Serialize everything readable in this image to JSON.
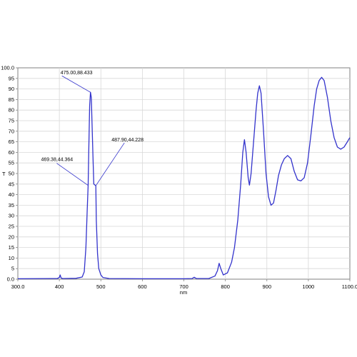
{
  "chart_data": {
    "type": "line",
    "xlabel": "nm",
    "ylabel": "T",
    "xlim": [
      300,
      1100
    ],
    "ylim": [
      0,
      100
    ],
    "x_ticks": [
      300,
      400,
      500,
      600,
      700,
      800,
      900,
      1000,
      1100
    ],
    "x_tick_labels": [
      "300.0",
      "400",
      "500",
      "600",
      "700",
      "800",
      "900",
      "1000",
      "1100.0"
    ],
    "y_ticks": [
      0,
      5,
      10,
      15,
      20,
      25,
      30,
      35,
      40,
      45,
      50,
      55,
      60,
      65,
      70,
      75,
      80,
      85,
      90,
      95,
      100
    ],
    "y_tick_labels": [
      "0.0",
      "5",
      "10",
      "15",
      "20",
      "25",
      "30",
      "35",
      "40",
      "45",
      "50",
      "55",
      "60",
      "65",
      "70",
      "75",
      "80",
      "85",
      "90",
      "95",
      "100.0"
    ],
    "grid": true,
    "line_color": "#3333cc",
    "series": [
      {
        "points": [
          [
            300,
            0.2
          ],
          [
            380,
            0.3
          ],
          [
            395,
            0.3
          ],
          [
            400,
            0.8
          ],
          [
            402,
            2.0
          ],
          [
            404,
            0.6
          ],
          [
            408,
            0.3
          ],
          [
            440,
            0.4
          ],
          [
            455,
            1.0
          ],
          [
            460,
            3.5
          ],
          [
            464,
            15
          ],
          [
            467,
            32
          ],
          [
            469.38,
            44.364
          ],
          [
            471,
            62
          ],
          [
            473,
            82
          ],
          [
            475,
            88.433
          ],
          [
            477,
            86
          ],
          [
            479,
            72
          ],
          [
            481,
            58
          ],
          [
            483,
            45
          ],
          [
            487.9,
            44.228
          ],
          [
            489,
            28
          ],
          [
            492,
            12
          ],
          [
            495,
            5
          ],
          [
            500,
            2
          ],
          [
            505,
            0.8
          ],
          [
            520,
            0.3
          ],
          [
            600,
            0.2
          ],
          [
            700,
            0.2
          ],
          [
            720,
            0.3
          ],
          [
            725,
            0.9
          ],
          [
            730,
            0.3
          ],
          [
            760,
            0.3
          ],
          [
            775,
            1.5
          ],
          [
            781,
            4
          ],
          [
            785,
            7.5
          ],
          [
            789,
            5
          ],
          [
            795,
            2
          ],
          [
            805,
            3
          ],
          [
            815,
            8
          ],
          [
            822,
            15
          ],
          [
            830,
            28
          ],
          [
            837,
            45
          ],
          [
            842,
            60
          ],
          [
            846,
            66
          ],
          [
            850,
            60
          ],
          [
            855,
            48
          ],
          [
            858,
            44.5
          ],
          [
            862,
            50
          ],
          [
            868,
            65
          ],
          [
            874,
            80
          ],
          [
            878,
            88
          ],
          [
            882,
            91.5
          ],
          [
            886,
            88
          ],
          [
            892,
            70
          ],
          [
            898,
            50
          ],
          [
            904,
            39
          ],
          [
            910,
            35
          ],
          [
            916,
            36
          ],
          [
            922,
            42
          ],
          [
            928,
            49
          ],
          [
            935,
            54
          ],
          [
            942,
            57
          ],
          [
            950,
            58.5
          ],
          [
            958,
            57
          ],
          [
            966,
            51
          ],
          [
            974,
            47
          ],
          [
            982,
            46.5
          ],
          [
            990,
            48
          ],
          [
            998,
            55
          ],
          [
            1006,
            68
          ],
          [
            1014,
            82
          ],
          [
            1020,
            90
          ],
          [
            1026,
            94
          ],
          [
            1032,
            95.5
          ],
          [
            1038,
            94
          ],
          [
            1046,
            86
          ],
          [
            1054,
            75
          ],
          [
            1062,
            67
          ],
          [
            1070,
            62.5
          ],
          [
            1078,
            61.5
          ],
          [
            1086,
            62.5
          ],
          [
            1094,
            65
          ],
          [
            1100,
            67
          ]
        ]
      }
    ],
    "annotations": [
      {
        "text": "475.00,88.433",
        "x": 475,
        "y": 88.433
      },
      {
        "text": "469.38,44.364",
        "x": 469.38,
        "y": 44.364
      },
      {
        "text": "487.90,44.228",
        "x": 487.9,
        "y": 44.228
      }
    ]
  }
}
